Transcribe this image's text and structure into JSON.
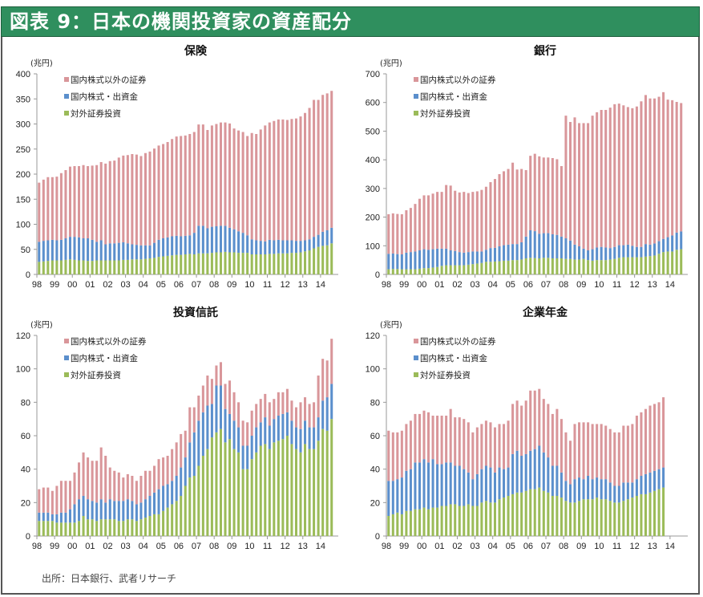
{
  "header": {
    "title": "図表 9：日本の機関投資家の資産配分"
  },
  "source": "出所：日本銀行、武者リサーチ",
  "colors": {
    "other": "#d9969a",
    "equity": "#5b8fcc",
    "foreign": "#9bbb59",
    "header_bg": "#2f8f5e"
  },
  "chart_data": [
    {
      "type": "bar",
      "stacked": true,
      "title": "保険",
      "unit": "(兆円)",
      "ylim": [
        0,
        400
      ],
      "yticks": [
        0,
        50,
        100,
        150,
        200,
        250,
        300,
        350,
        400
      ],
      "xtick_labels": [
        "98",
        "99",
        "00",
        "01",
        "02",
        "03",
        "04",
        "05",
        "06",
        "07",
        "08",
        "09",
        "10",
        "11",
        "12",
        "13",
        "14"
      ],
      "legend": [
        "国内株式以外の証券",
        "国内株式・出資金",
        "対外証券投資"
      ],
      "legend_placement": "top-left",
      "series": [
        {
          "name": "対外証券投資",
          "values": [
            25,
            26,
            27,
            28,
            28,
            28,
            29,
            30,
            29,
            28,
            28,
            27,
            27,
            28,
            28,
            28,
            28,
            28,
            28,
            29,
            29,
            30,
            30,
            30,
            31,
            32,
            33,
            35,
            36,
            37,
            38,
            39,
            39,
            40,
            41,
            40,
            42,
            42,
            42,
            43,
            44,
            44,
            45,
            44,
            44,
            43,
            43,
            43,
            40,
            40,
            40,
            40,
            41,
            41,
            42,
            42,
            42,
            43,
            43,
            44,
            46,
            48,
            52,
            55,
            57,
            58,
            62
          ]
        },
        {
          "name": "国内株式・出資金",
          "values": [
            40,
            41,
            41,
            41,
            40,
            41,
            43,
            45,
            46,
            46,
            44,
            45,
            42,
            37,
            40,
            32,
            34,
            34,
            35,
            35,
            33,
            30,
            29,
            28,
            27,
            26,
            30,
            34,
            36,
            37,
            38,
            38,
            37,
            37,
            37,
            43,
            55,
            55,
            50,
            52,
            52,
            53,
            52,
            49,
            46,
            43,
            40,
            35,
            30,
            28,
            27,
            26,
            28,
            27,
            27,
            26,
            26,
            25,
            24,
            23,
            22,
            22,
            23,
            24,
            28,
            30,
            31
          ]
        },
        {
          "name": "国内株式以外の証券",
          "values": [
            118,
            122,
            126,
            125,
            127,
            133,
            136,
            140,
            141,
            142,
            146,
            144,
            148,
            153,
            156,
            161,
            164,
            165,
            170,
            173,
            176,
            180,
            180,
            178,
            184,
            187,
            188,
            188,
            188,
            190,
            194,
            198,
            200,
            200,
            202,
            201,
            202,
            202,
            196,
            202,
            204,
            206,
            206,
            208,
            201,
            201,
            201,
            198,
            212,
            212,
            222,
            231,
            234,
            238,
            240,
            241,
            240,
            242,
            244,
            248,
            254,
            262,
            273,
            269,
            273,
            273,
            273
          ]
        }
      ]
    },
    {
      "type": "bar",
      "stacked": true,
      "title": "銀行",
      "unit": "(兆円)",
      "ylim": [
        0,
        700
      ],
      "yticks": [
        0,
        100,
        200,
        300,
        400,
        500,
        600,
        700
      ],
      "xtick_labels": [
        "98",
        "99",
        "00",
        "01",
        "02",
        "03",
        "04",
        "05",
        "06",
        "07",
        "08",
        "09",
        "10",
        "11",
        "12",
        "13",
        "14"
      ],
      "legend": [
        "国内株式以外の証券",
        "国内株式・出資金",
        "対外証券投資"
      ],
      "legend_placement": "top-left",
      "series": [
        {
          "name": "対外証券投資",
          "values": [
            18,
            19,
            19,
            18,
            18,
            18,
            18,
            20,
            22,
            22,
            24,
            26,
            30,
            32,
            32,
            32,
            32,
            32,
            34,
            36,
            38,
            40,
            44,
            44,
            45,
            46,
            48,
            48,
            50,
            50,
            52,
            56,
            58,
            57,
            56,
            58,
            58,
            56,
            56,
            56,
            54,
            54,
            52,
            52,
            54,
            50,
            48,
            50,
            50,
            50,
            52,
            54,
            58,
            60,
            60,
            60,
            60,
            60,
            62,
            64,
            66,
            72,
            78,
            80,
            80,
            86,
            88
          ]
        },
        {
          "name": "国内株式・出資金",
          "values": [
            54,
            54,
            52,
            52,
            58,
            60,
            62,
            64,
            66,
            64,
            64,
            64,
            60,
            58,
            52,
            50,
            46,
            44,
            44,
            44,
            42,
            40,
            42,
            48,
            48,
            52,
            54,
            56,
            56,
            56,
            60,
            76,
            96,
            94,
            86,
            86,
            86,
            84,
            82,
            76,
            72,
            64,
            52,
            46,
            36,
            34,
            40,
            44,
            46,
            44,
            40,
            42,
            44,
            42,
            44,
            40,
            36,
            36,
            44,
            40,
            42,
            44,
            46,
            50,
            56,
            60,
            62
          ]
        },
        {
          "name": "国内株式以外の証券",
          "values": [
            138,
            140,
            140,
            140,
            148,
            154,
            166,
            180,
            188,
            190,
            194,
            198,
            198,
            222,
            226,
            210,
            208,
            212,
            206,
            208,
            210,
            215,
            220,
            230,
            240,
            252,
            258,
            264,
            284,
            260,
            256,
            232,
            260,
            270,
            270,
            264,
            264,
            266,
            264,
            246,
            428,
            414,
            444,
            430,
            438,
            444,
            466,
            472,
            478,
            480,
            490,
            498,
            494,
            488,
            480,
            480,
            490,
            508,
            520,
            510,
            506,
            504,
            512,
            480,
            472,
            456,
            448
          ]
        }
      ]
    },
    {
      "type": "bar",
      "stacked": true,
      "title": "投資信託",
      "unit": "(兆円)",
      "ylim": [
        0,
        120
      ],
      "yticks": [
        0,
        20,
        40,
        60,
        80,
        100,
        120
      ],
      "xtick_labels": [
        "98",
        "99",
        "00",
        "01",
        "02",
        "03",
        "04",
        "05",
        "06",
        "07",
        "08",
        "09",
        "10",
        "11",
        "12",
        "13",
        "14"
      ],
      "legend": [
        "国内株式以外の証券",
        "国内株式・出資金",
        "対外証券投資"
      ],
      "legend_placement": "top-left",
      "series": [
        {
          "name": "対外証券投資",
          "values": [
            9,
            9,
            9,
            9,
            8,
            8,
            8,
            8,
            8,
            9,
            12,
            10,
            10,
            9,
            10,
            10,
            10,
            10,
            9,
            9,
            10,
            10,
            9,
            10,
            11,
            12,
            13,
            13,
            15,
            17,
            19,
            21,
            24,
            30,
            35,
            36,
            42,
            48,
            52,
            59,
            62,
            64,
            56,
            58,
            52,
            50,
            40,
            40,
            46,
            50,
            54,
            55,
            52,
            56,
            57,
            58,
            60,
            55,
            52,
            50,
            55,
            52,
            52,
            57,
            64,
            63,
            70
          ]
        },
        {
          "name": "国内株式・出資金",
          "values": [
            5,
            5,
            5,
            4,
            5,
            6,
            6,
            8,
            11,
            13,
            12,
            12,
            11,
            11,
            12,
            10,
            12,
            11,
            12,
            12,
            12,
            11,
            10,
            10,
            11,
            12,
            13,
            15,
            15,
            14,
            14,
            15,
            17,
            17,
            21,
            26,
            27,
            26,
            26,
            20,
            28,
            26,
            20,
            15,
            17,
            15,
            14,
            14,
            14,
            15,
            14,
            16,
            14,
            14,
            15,
            15,
            14,
            14,
            13,
            14,
            14,
            13,
            13,
            14,
            17,
            20,
            21
          ]
        },
        {
          "name": "国内株式以外の証券",
          "values": [
            14,
            15,
            15,
            14,
            17,
            19,
            19,
            17,
            19,
            22,
            26,
            25,
            24,
            25,
            31,
            28,
            19,
            18,
            17,
            14,
            15,
            15,
            14,
            16,
            17,
            15,
            16,
            18,
            17,
            17,
            19,
            20,
            20,
            16,
            21,
            15,
            15,
            16,
            18,
            15,
            12,
            14,
            15,
            20,
            17,
            15,
            15,
            14,
            15,
            14,
            14,
            14,
            14,
            12,
            14,
            13,
            14,
            12,
            12,
            16,
            14,
            14,
            15,
            25,
            25,
            22,
            27
          ]
        }
      ]
    },
    {
      "type": "bar",
      "stacked": true,
      "title": "企業年金",
      "unit": "(兆円)",
      "ylim": [
        0,
        120
      ],
      "yticks": [
        0,
        20,
        40,
        60,
        80,
        100,
        120
      ],
      "xtick_labels": [
        "98",
        "99",
        "00",
        "01",
        "02",
        "03",
        "04",
        "05",
        "06",
        "07",
        "08",
        "09",
        "10",
        "11",
        "12",
        "13",
        "14"
      ],
      "legend": [
        "国内株式以外の証券",
        "国内株式・出資金",
        "対外証券投資"
      ],
      "legend_placement": "top-left",
      "series": [
        {
          "name": "対外証券投資",
          "values": [
            12,
            13,
            14,
            13,
            15,
            15,
            16,
            16,
            17,
            16,
            17,
            17,
            18,
            18,
            19,
            19,
            18,
            18,
            19,
            18,
            18,
            20,
            21,
            20,
            20,
            22,
            23,
            24,
            25,
            26,
            26,
            27,
            28,
            28,
            29,
            27,
            26,
            24,
            24,
            23,
            21,
            20,
            20,
            21,
            22,
            22,
            22,
            23,
            22,
            22,
            21,
            20,
            20,
            21,
            22,
            23,
            24,
            25,
            25,
            26,
            27,
            28,
            29
          ]
        },
        {
          "name": "国内株式・出資金",
          "values": [
            21,
            20,
            20,
            22,
            24,
            25,
            28,
            28,
            29,
            28,
            29,
            26,
            25,
            26,
            25,
            23,
            24,
            22,
            19,
            16,
            19,
            20,
            21,
            21,
            18,
            19,
            17,
            17,
            24,
            25,
            22,
            22,
            23,
            24,
            25,
            23,
            21,
            18,
            18,
            15,
            12,
            11,
            14,
            14,
            12,
            14,
            12,
            12,
            12,
            12,
            11,
            10,
            10,
            11,
            10,
            9,
            10,
            11,
            12,
            12,
            12,
            12,
            12
          ]
        },
        {
          "name": "国内株式以外の証券",
          "values": [
            30,
            29,
            28,
            28,
            28,
            29,
            29,
            29,
            29,
            30,
            26,
            29,
            29,
            28,
            32,
            29,
            29,
            30,
            30,
            28,
            28,
            27,
            27,
            27,
            27,
            26,
            27,
            28,
            30,
            30,
            30,
            32,
            36,
            35,
            34,
            32,
            32,
            31,
            34,
            32,
            29,
            26,
            33,
            33,
            34,
            32,
            33,
            32,
            33,
            32,
            32,
            32,
            32,
            34,
            34,
            35,
            38,
            38,
            39,
            40,
            40,
            40,
            42
          ]
        }
      ]
    }
  ]
}
